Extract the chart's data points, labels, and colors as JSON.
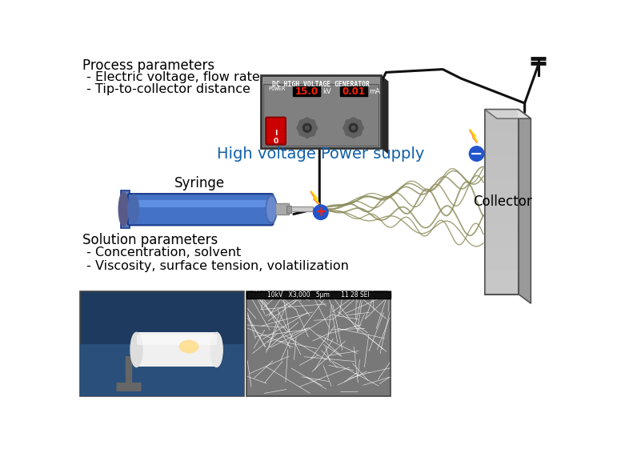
{
  "bg_color": "#ffffff",
  "text_process_params_title": "Process parameters",
  "text_process_params_l1": " - Electric voltage, flow rate",
  "text_process_params_l2": " - Tip-to-collector distance",
  "text_solution_params_title": "Solution parameters",
  "text_solution_params_l1": " - Concentration, solvent",
  "text_solution_params_l2": " - Viscosity, surface tension, volatilization",
  "text_syringe": "Syringe",
  "text_collector": "Collector",
  "text_power_supply": "High voltage Power supply",
  "text_dc_gen": "DC HIGH VOLTAGE GENERATOR",
  "text_power": "POWER",
  "text_kv": "15.0",
  "text_kv_unit": "kV",
  "text_ma": "0.01",
  "text_ma_unit": "mA",
  "fiber_color": "#8B8B5A",
  "syringe_color": "#4472C4",
  "wire_color": "#111111",
  "box_bg": "#909090",
  "box_shadow": "#383838",
  "power_supply_label_color": "#1060AA"
}
